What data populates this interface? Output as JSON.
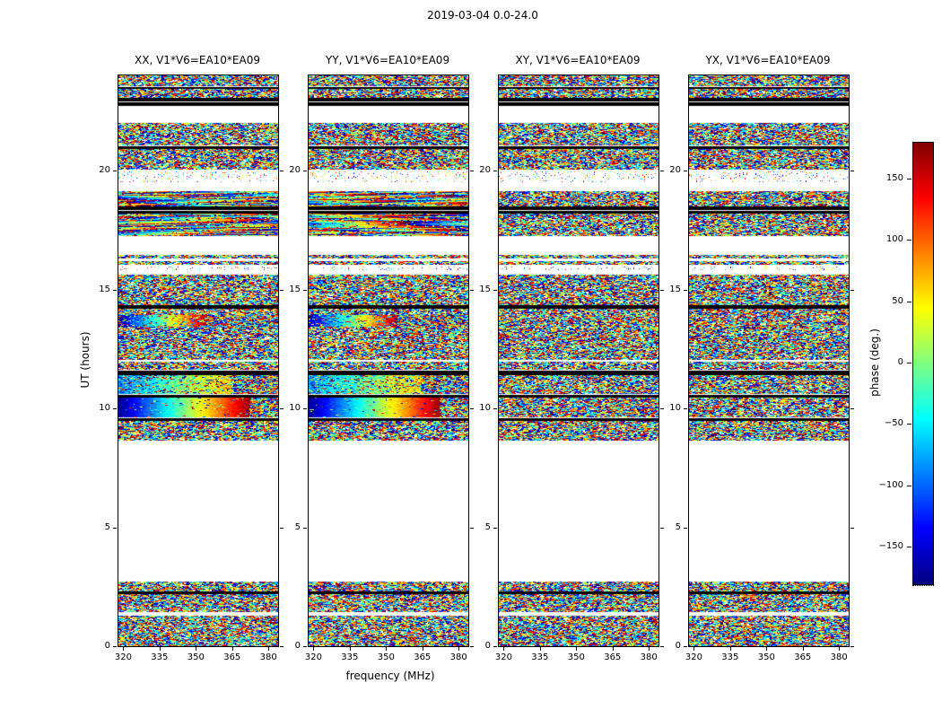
{
  "figure_title": "2019-03-04 0.0-24.0",
  "axes": {
    "ylabel": "UT (hours)",
    "xlabel": "frequency (MHz)"
  },
  "colorbar": {
    "label": "phase (deg.)",
    "colormap": "jet",
    "range": [
      -180,
      180
    ],
    "tick_values": [
      150,
      100,
      50,
      0,
      -50,
      -100,
      -150
    ],
    "tick_labels": [
      "150",
      "100",
      "50",
      "0",
      "−50",
      "−100",
      "−150"
    ],
    "gradient": [
      "#00007f",
      "#0000ff",
      "#00ffff",
      "#ffff00",
      "#ff0000",
      "#7f0000"
    ]
  },
  "chart_data": {
    "type": "heatmap",
    "title": "2019-03-04 0.0-24.0",
    "xlabel": "frequency (MHz)",
    "ylabel": "UT (hours)",
    "value_label": "phase (deg.)",
    "value_range": [
      -180,
      180
    ],
    "x_range_mhz": [
      318,
      384
    ],
    "x_ticks": [
      320,
      335,
      350,
      365,
      380
    ],
    "y_range_hours": [
      0,
      24
    ],
    "y_ticks": [
      0,
      5,
      10,
      15,
      20
    ],
    "panels": [
      {
        "pol": "XX",
        "title": "XX, V1*V6=EA10*EA09",
        "smooth_features": true,
        "seed": 11
      },
      {
        "pol": "YY",
        "title": "YY, V1*V6=EA10*EA09",
        "smooth_features": true,
        "seed": 22
      },
      {
        "pol": "XY",
        "title": "XY, V1*V6=EA10*EA09",
        "smooth_features": false,
        "seed": 33
      },
      {
        "pol": "YX",
        "title": "YX, V1*V6=EA10*EA09",
        "smooth_features": false,
        "seed": 44
      }
    ],
    "bands_note": "UT-hour intervals containing data; regions not listed are blank (no data). 'black' = flagged/zero-phase rows, 'noise' = random wrapped phase, 'smooth*'/'streaks' = coherent phase gradients visible only in XX/YY panels.",
    "bands": [
      {
        "ut0": 23.55,
        "ut1": 24.0,
        "type": "noise"
      },
      {
        "ut0": 23.42,
        "ut1": 23.52,
        "type": "black"
      },
      {
        "ut0": 23.05,
        "ut1": 23.42,
        "type": "noise"
      },
      {
        "ut0": 22.72,
        "ut1": 23.05,
        "type": "black2"
      },
      {
        "ut0": 21.05,
        "ut1": 22.0,
        "type": "noise"
      },
      {
        "ut0": 20.92,
        "ut1": 21.02,
        "type": "black"
      },
      {
        "ut0": 20.05,
        "ut1": 20.92,
        "type": "noise"
      },
      {
        "ut0": 19.62,
        "ut1": 19.95,
        "type": "sparse"
      },
      {
        "ut0": 19.5,
        "ut1": 19.58,
        "type": "sparse"
      },
      {
        "ut0": 18.5,
        "ut1": 19.12,
        "type": "streaks"
      },
      {
        "ut0": 18.18,
        "ut1": 18.5,
        "type": "black2"
      },
      {
        "ut0": 17.25,
        "ut1": 18.18,
        "type": "streaks"
      },
      {
        "ut0": 16.02,
        "ut1": 16.45,
        "type": "noiseline"
      },
      {
        "ut0": 15.82,
        "ut1": 15.98,
        "type": "sparse"
      },
      {
        "ut0": 14.35,
        "ut1": 15.62,
        "type": "noise"
      },
      {
        "ut0": 14.2,
        "ut1": 14.35,
        "type": "black"
      },
      {
        "ut0": 13.92,
        "ut1": 14.2,
        "type": "noise"
      },
      {
        "ut0": 13.42,
        "ut1": 13.92,
        "type": "smoothA"
      },
      {
        "ut0": 12.02,
        "ut1": 13.42,
        "type": "noise"
      },
      {
        "ut0": 11.62,
        "ut1": 11.95,
        "type": "noise"
      },
      {
        "ut0": 11.4,
        "ut1": 11.58,
        "type": "black"
      },
      {
        "ut0": 10.62,
        "ut1": 11.4,
        "type": "smoothB"
      },
      {
        "ut0": 10.44,
        "ut1": 10.56,
        "type": "black"
      },
      {
        "ut0": 9.62,
        "ut1": 10.44,
        "type": "smoothC"
      },
      {
        "ut0": 9.46,
        "ut1": 9.6,
        "type": "black"
      },
      {
        "ut0": 8.64,
        "ut1": 9.46,
        "type": "noise"
      },
      {
        "ut0": 2.32,
        "ut1": 2.7,
        "type": "noise"
      },
      {
        "ut0": 2.2,
        "ut1": 2.32,
        "type": "black"
      },
      {
        "ut0": 1.42,
        "ut1": 2.2,
        "type": "noise"
      },
      {
        "ut0": 0.0,
        "ut1": 1.28,
        "type": "noise"
      }
    ]
  }
}
